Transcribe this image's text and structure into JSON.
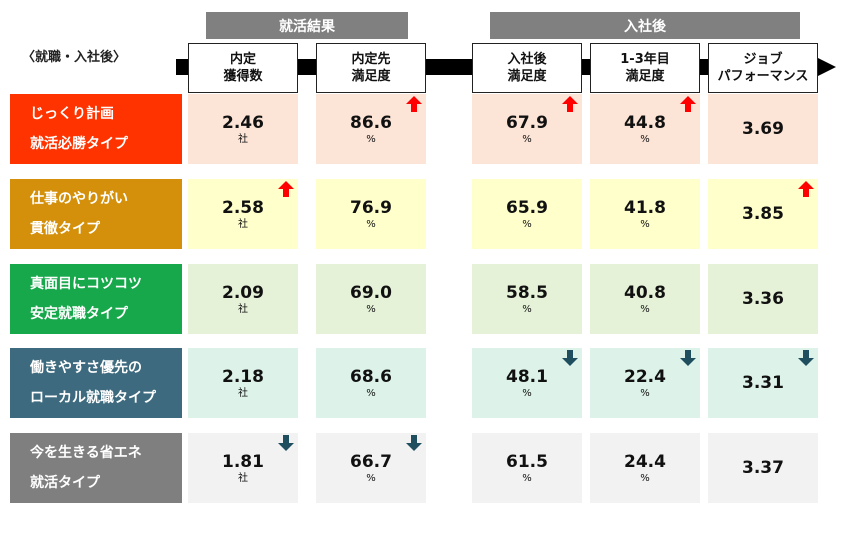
{
  "chart_data": {
    "type": "table",
    "row_axis_label": "〈就職・入社後〉",
    "column_groups": [
      {
        "label": "就活結果",
        "columns": [
          0,
          1
        ]
      },
      {
        "label": "入社後",
        "columns": [
          2,
          3,
          4
        ]
      }
    ],
    "columns": [
      {
        "line1": "内定",
        "line2": "獲得数",
        "unit": "社"
      },
      {
        "line1": "内定先",
        "line2": "満足度",
        "unit": "%"
      },
      {
        "line1": "入社後",
        "line2": "満足度",
        "unit": "%"
      },
      {
        "line1": "1‐3年目",
        "line2": "満足度",
        "unit": "%"
      },
      {
        "line1": "ジョブ",
        "line2": "パフォーマンス",
        "unit": ""
      }
    ],
    "rows": [
      {
        "line1": "じっくり計画",
        "line2": "就活必勝タイプ",
        "color": "#FF3300",
        "cell_color": "#FCE4D6",
        "values": [
          "2.46",
          "86.6",
          "67.9",
          "44.8",
          "3.69"
        ],
        "marks": [
          "",
          "up",
          "up",
          "up",
          ""
        ]
      },
      {
        "line1": "仕事のやりがい",
        "line2": "貫徹タイプ",
        "color": "#D4900A",
        "cell_color": "#FFFFCC",
        "values": [
          "2.58",
          "76.9",
          "65.9",
          "41.8",
          "3.85"
        ],
        "marks": [
          "up",
          "",
          "",
          "",
          "up"
        ]
      },
      {
        "line1": "真面目にコツコツ",
        "line2": "安定就職タイプ",
        "color": "#18A84C",
        "cell_color": "#E5F2D8",
        "values": [
          "2.09",
          "69.0",
          "58.5",
          "40.8",
          "3.36"
        ],
        "marks": [
          "",
          "",
          "",
          "",
          ""
        ]
      },
      {
        "line1": "働きやすさ優先の",
        "line2": "ローカル就職タイプ",
        "color": "#3D6A7E",
        "cell_color": "#DDF3EA",
        "values": [
          "2.18",
          "68.6",
          "48.1",
          "22.4",
          "3.31"
        ],
        "marks": [
          "",
          "",
          "down",
          "down",
          "down"
        ]
      },
      {
        "line1": "今を生きる省エネ",
        "line2": "就活タイプ",
        "color": "#7F7F7F",
        "cell_color": "#F2F2F2",
        "values": [
          "1.81",
          "66.7",
          "61.5",
          "24.4",
          "3.37"
        ],
        "marks": [
          "down",
          "down",
          "",
          "",
          ""
        ]
      }
    ],
    "mark_colors": {
      "up": "#FF0000",
      "down": "#1F4E5F"
    }
  }
}
